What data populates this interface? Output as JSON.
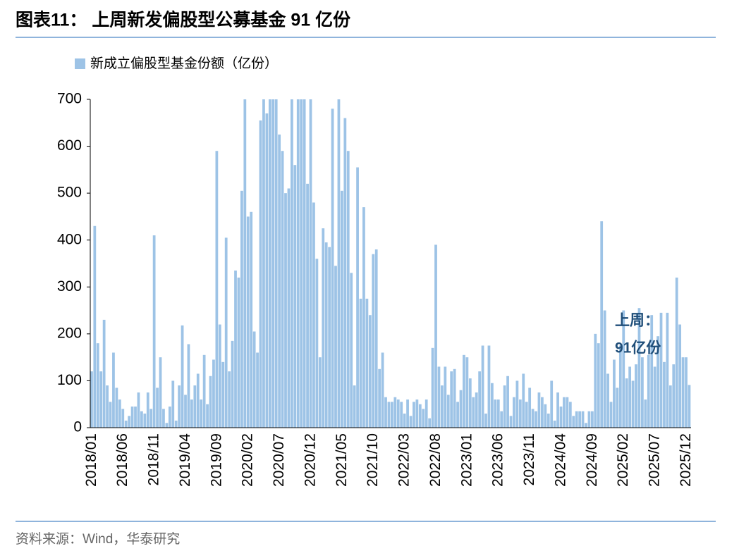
{
  "chart_data": {
    "type": "bar",
    "title": "图表11：  上周新发偏股型公募基金 91 亿份",
    "legend_label": "新成立偏股型基金份额（亿份）",
    "source": "资料来源：Wind，华泰研究",
    "annotations": [
      "上周：",
      "91亿份"
    ],
    "color": "#9dc3e6",
    "ylim": [
      0,
      700
    ],
    "yticks": [
      0,
      100,
      200,
      300,
      400,
      500,
      600,
      700
    ],
    "grid": false,
    "categories": [
      "2018/01",
      null,
      null,
      null,
      null,
      null,
      null,
      null,
      null,
      null,
      "2018/06",
      null,
      null,
      null,
      null,
      null,
      null,
      null,
      null,
      null,
      "2018/11",
      null,
      null,
      null,
      null,
      null,
      null,
      null,
      null,
      null,
      "2019/04",
      null,
      null,
      null,
      null,
      null,
      null,
      null,
      null,
      null,
      "2019/09",
      null,
      null,
      null,
      null,
      null,
      null,
      null,
      null,
      null,
      "2020/02",
      null,
      null,
      null,
      null,
      null,
      null,
      null,
      null,
      null,
      "2020/07",
      null,
      null,
      null,
      null,
      null,
      null,
      null,
      null,
      null,
      "2020/12",
      null,
      null,
      null,
      null,
      null,
      null,
      null,
      null,
      null,
      "2021/05",
      null,
      null,
      null,
      null,
      null,
      null,
      null,
      null,
      null,
      "2021/10",
      null,
      null,
      null,
      null,
      null,
      null,
      null,
      null,
      null,
      "2022/03",
      null,
      null,
      null,
      null,
      null,
      null,
      null,
      null,
      null,
      "2022/08",
      null,
      null,
      null,
      null,
      null,
      null,
      null,
      null,
      null,
      "2023/01",
      null,
      null,
      null,
      null,
      null,
      null,
      null,
      null,
      null,
      "2023/06",
      null,
      null,
      null,
      null,
      null,
      null,
      null,
      null,
      null,
      "2023/11",
      null,
      null,
      null,
      null,
      null,
      null,
      null,
      null,
      null,
      "2024/04",
      null,
      null,
      null,
      null,
      null,
      null,
      null,
      null,
      null,
      "2024/09",
      null,
      null,
      null,
      null,
      null,
      null,
      null,
      null,
      null,
      "2025/02",
      null,
      null,
      null,
      null,
      null,
      null,
      null,
      null,
      null,
      "2025/07",
      null,
      null,
      null,
      null,
      null,
      null,
      null,
      null,
      null,
      "2025/12",
      null
    ],
    "values": [
      120,
      430,
      180,
      120,
      230,
      90,
      55,
      160,
      85,
      60,
      40,
      15,
      25,
      45,
      45,
      75,
      35,
      30,
      75,
      40,
      410,
      85,
      150,
      40,
      10,
      45,
      100,
      15,
      90,
      218,
      70,
      178,
      60,
      90,
      115,
      60,
      155,
      50,
      110,
      145,
      590,
      220,
      140,
      405,
      120,
      185,
      335,
      320,
      505,
      700,
      450,
      460,
      205,
      160,
      655,
      700,
      670,
      700,
      700,
      700,
      625,
      590,
      500,
      510,
      700,
      560,
      700,
      700,
      700,
      520,
      700,
      480,
      360,
      150,
      425,
      395,
      385,
      680,
      345,
      700,
      505,
      660,
      590,
      330,
      90,
      555,
      275,
      470,
      275,
      240,
      370,
      380,
      125,
      160,
      65,
      55,
      55,
      65,
      60,
      55,
      30,
      60,
      25,
      55,
      60,
      50,
      40,
      60,
      20,
      170,
      390,
      130,
      90,
      130,
      70,
      120,
      125,
      55,
      80,
      155,
      150,
      105,
      65,
      75,
      120,
      175,
      30,
      175,
      95,
      60,
      60,
      35,
      90,
      110,
      25,
      65,
      100,
      60,
      115,
      55,
      85,
      40,
      35,
      75,
      65,
      50,
      30,
      100,
      15,
      75,
      45,
      65,
      65,
      55,
      25,
      35,
      35,
      35,
      10,
      35,
      35,
      200,
      180,
      440,
      250,
      115,
      55,
      145,
      85,
      175,
      250,
      105,
      130,
      100,
      135,
      255,
      150,
      60,
      155,
      240,
      130,
      195,
      245,
      140,
      245,
      90,
      135,
      320,
      220,
      150,
      150,
      91
    ]
  }
}
